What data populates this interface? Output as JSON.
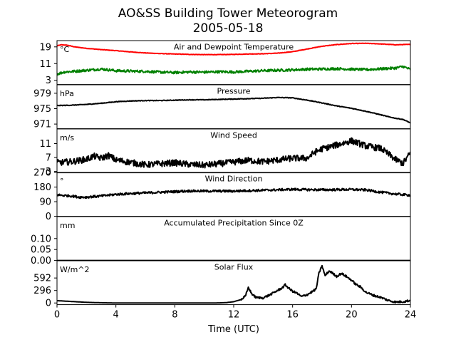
{
  "chart_data": {
    "type": "line",
    "title": "AO&SS Building Tower Meteorogram",
    "subtitle": "2005-05-18",
    "xlabel": "Time (UTC)",
    "xlim": [
      0,
      24
    ],
    "xticks": [
      0,
      4,
      8,
      12,
      16,
      20,
      24
    ],
    "panels": [
      {
        "title": "Air and Dewpoint Temperature",
        "unit": "°C",
        "ylim": [
          1,
          22
        ],
        "yticks": [
          3,
          11,
          19
        ],
        "series": [
          {
            "color": "#ff0000",
            "noise": 0.1,
            "x": [
              0,
              0.3,
              0.7,
              1.2,
              2,
              3,
              4,
              5,
              6,
              7,
              8,
              9,
              10,
              11,
              12,
              13,
              14,
              15,
              16,
              17,
              18,
              19,
              20,
              21,
              22,
              23,
              24
            ],
            "y": [
              19.5,
              20,
              19.8,
              19,
              18.3,
              17.7,
              17.2,
              16.6,
              16.1,
              15.8,
              15.6,
              15.4,
              15.3,
              15.3,
              15.4,
              15.6,
              15.7,
              16,
              16.7,
              18,
              19.3,
              20.1,
              20.6,
              20.7,
              20.4,
              20,
              20.2
            ]
          },
          {
            "color": "#008000",
            "noise": 0.6,
            "x": [
              0,
              0.5,
              1,
              2,
              3,
              4,
              5,
              6,
              7,
              8,
              9,
              10,
              11,
              12,
              13,
              14,
              15,
              16,
              17,
              18,
              19,
              20,
              21,
              22,
              23,
              23.5,
              24
            ],
            "y": [
              6,
              7,
              7.2,
              7.8,
              8.4,
              7.6,
              7.4,
              7.3,
              6.9,
              6.7,
              7.0,
              6.9,
              7.1,
              7.0,
              7.3,
              7.6,
              7.8,
              8.0,
              8.3,
              8.4,
              8.6,
              8.3,
              8.1,
              8.5,
              8.9,
              9.6,
              8.2
            ]
          }
        ]
      },
      {
        "title": "Pressure",
        "unit": "hPa",
        "ylim": [
          969.8,
          981.2
        ],
        "yticks": [
          971,
          975,
          979
        ],
        "series": [
          {
            "color": "#000000",
            "noise": 0.08,
            "x": [
              0,
              1,
              2,
              3,
              4,
              5,
              6,
              7,
              8,
              9,
              10,
              11,
              12,
              13,
              14,
              15,
              16,
              17,
              18,
              19,
              20,
              21,
              22,
              22.5,
              23,
              23.5,
              24
            ],
            "y": [
              975.8,
              975.9,
              976.1,
              976.4,
              976.8,
              977.0,
              977.1,
              977.1,
              977.2,
              977.3,
              977.3,
              977.4,
              977.5,
              977.6,
              977.7,
              977.9,
              977.8,
              977.2,
              976.5,
              975.7,
              975.1,
              974.3,
              973.4,
              972.9,
              972.5,
              972.2,
              971.3
            ]
          }
        ]
      },
      {
        "title": "Wind Speed",
        "unit": "m/s",
        "ylim": [
          2.6,
          15.2
        ],
        "yticks": [
          3,
          7,
          11
        ],
        "series": [
          {
            "color": "#000000",
            "noise": 0.9,
            "x": [
              0,
              1,
              2,
              2.5,
              3,
              3.5,
              4,
              5,
              6,
              7,
              8,
              9,
              10,
              11,
              12,
              13,
              14,
              15,
              16,
              17,
              17.5,
              18,
              19,
              20,
              21,
              22,
              23,
              23.5,
              24
            ],
            "y": [
              5.5,
              5.8,
              6.5,
              7.4,
              6.8,
              7.6,
              6.3,
              5.6,
              4.9,
              5.2,
              5.5,
              5.0,
              4.8,
              5.2,
              5.7,
              6.2,
              5.8,
              6.3,
              6.8,
              6.8,
              8.5,
              9.5,
              10.6,
              11.8,
              10.3,
              9.6,
              6.4,
              5.3,
              8.3
            ]
          }
        ]
      },
      {
        "title": "Wind Direction",
        "unit": "°",
        "ylim": [
          0,
          270
        ],
        "yticks": [
          0,
          90,
          180,
          270
        ],
        "series": [
          {
            "color": "#000000",
            "noise": 7,
            "x": [
              0,
              0.5,
              1,
              1.5,
              2,
              3,
              4,
              5,
              6,
              7,
              8,
              9,
              10,
              11,
              12,
              13,
              14,
              15,
              16,
              17,
              18,
              19,
              20,
              21,
              22,
              23,
              24
            ],
            "y": [
              132,
              128,
              125,
              118,
              118,
              125,
              135,
              140,
              144,
              148,
              152,
              156,
              155,
              155,
              155,
              158,
              160,
              163,
              166,
              164,
              163,
              164,
              165,
              162,
              148,
              137,
              130
            ]
          }
        ]
      },
      {
        "title": "Accumulated Precipitation Since 0Z",
        "unit": "mm",
        "ylim": [
          0,
          0.2
        ],
        "yticks": [
          0.0,
          0.05,
          0.1
        ],
        "ytick_labels": [
          "0.00",
          "0.05",
          "0.10"
        ],
        "series": [
          {
            "color": "#000000",
            "noise": 0,
            "x": [
              0,
              24
            ],
            "y": [
              0,
              0
            ]
          }
        ]
      },
      {
        "title": "Solar Flux",
        "unit": "W/m^2",
        "ylim": [
          -40,
          1000
        ],
        "yticks": [
          0,
          296,
          592
        ],
        "series": [
          {
            "color": "#000000",
            "noise": 25,
            "noise_from": 12.5,
            "x": [
              0,
              0.5,
              1,
              1.5,
              2,
              3,
              4,
              5,
              6,
              7,
              8,
              9,
              10,
              10.5,
              11,
              11.5,
              12,
              12.5,
              12.8,
              13,
              13.2,
              13.5,
              14,
              14.5,
              15,
              15.3,
              15.5,
              15.8,
              16,
              16.3,
              16.6,
              17,
              17.3,
              17.6,
              17.8,
              18,
              18.2,
              18.5,
              19,
              19.3,
              19.6,
              20,
              20.3,
              20.6,
              21,
              21.5,
              22,
              22.5,
              23,
              23.5,
              24
            ],
            "y": [
              55,
              45,
              35,
              25,
              15,
              5,
              0,
              0,
              0,
              0,
              0,
              0,
              0,
              0,
              2,
              8,
              30,
              80,
              160,
              370,
              230,
              130,
              120,
              200,
              300,
              360,
              430,
              330,
              280,
              230,
              150,
              200,
              260,
              330,
              720,
              880,
              650,
              760,
              630,
              700,
              640,
              540,
              440,
              380,
              250,
              180,
              130,
              60,
              20,
              30,
              60
            ]
          }
        ]
      }
    ]
  }
}
